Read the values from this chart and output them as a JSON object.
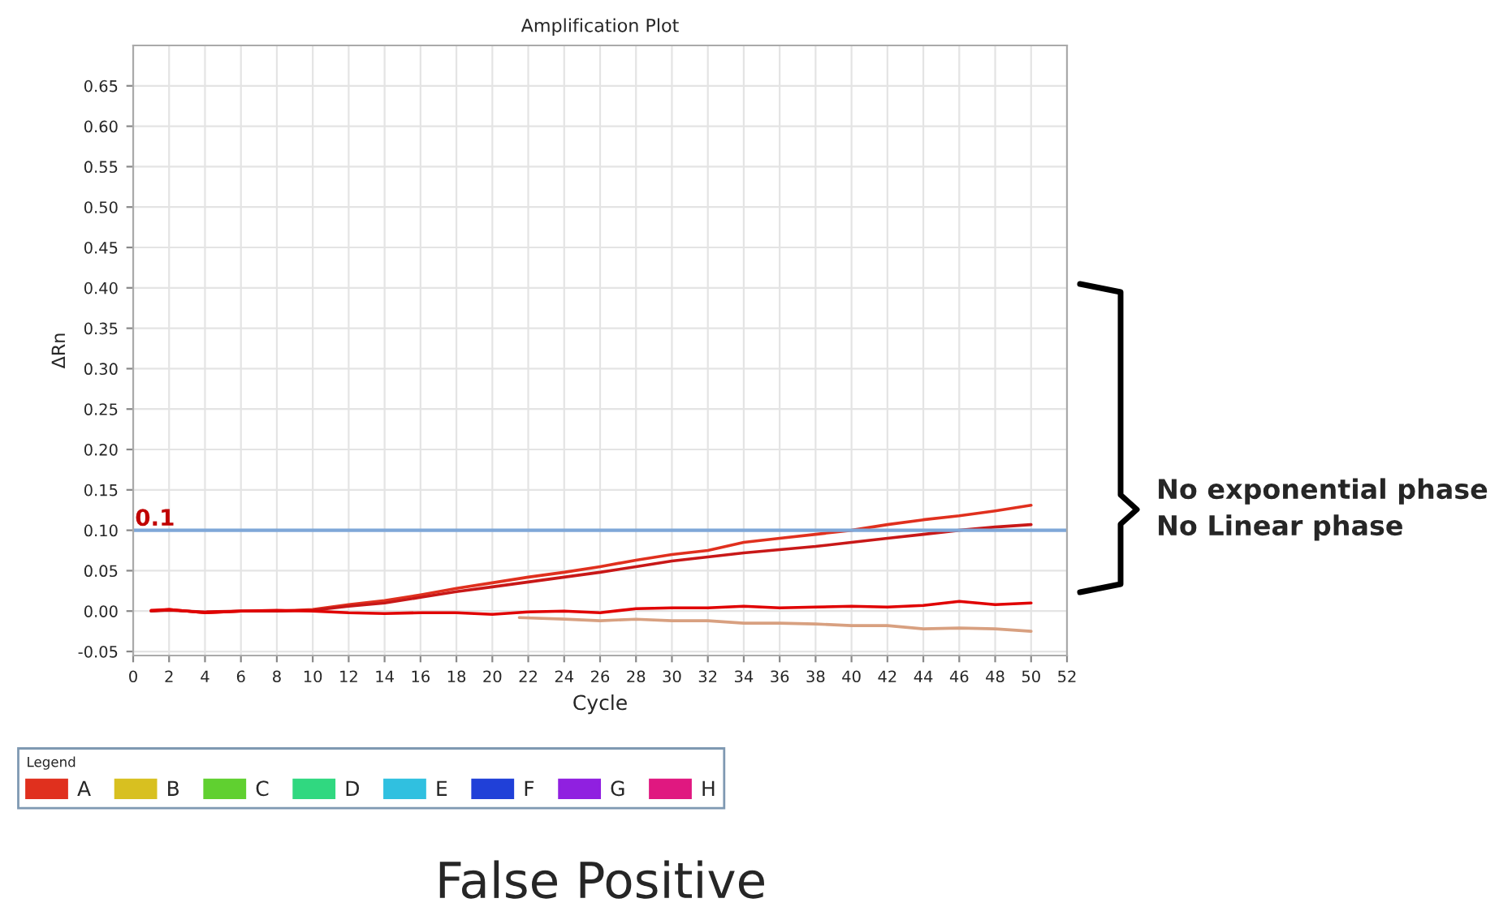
{
  "chart_data": {
    "type": "line",
    "title": "Amplification Plot",
    "xlabel": "Cycle",
    "ylabel": "ΔRn",
    "legend_title": "Legend",
    "x": [
      1,
      2,
      4,
      6,
      8,
      10,
      12,
      14,
      16,
      18,
      20,
      22,
      24,
      26,
      28,
      30,
      32,
      34,
      36,
      38,
      40,
      42,
      44,
      46,
      48,
      50
    ],
    "series": [
      {
        "name": "A",
        "color": "#e0301e",
        "values": [
          0.0,
          0.002,
          -0.002,
          0.0,
          0.0,
          0.002,
          0.008,
          0.013,
          0.02,
          0.028,
          0.035,
          0.042,
          0.048,
          0.055,
          0.063,
          0.07,
          0.075,
          0.085,
          0.09,
          0.095,
          0.1,
          0.107,
          0.113,
          0.118,
          0.124,
          0.131
        ]
      },
      {
        "color": "#c81818",
        "values": [
          0.0,
          0.001,
          -0.001,
          0.0,
          0.0,
          0.001,
          0.006,
          0.01,
          0.017,
          0.024,
          0.03,
          0.036,
          0.042,
          0.048,
          0.055,
          0.062,
          0.067,
          0.072,
          0.076,
          0.08,
          0.085,
          0.09,
          0.095,
          0.1,
          0.104,
          0.107
        ]
      },
      {
        "color": "#e00000",
        "values": [
          0.001,
          0.002,
          -0.002,
          0.0,
          0.001,
          0.0,
          -0.002,
          -0.003,
          -0.002,
          -0.002,
          -0.004,
          -0.001,
          0.0,
          -0.002,
          0.003,
          0.004,
          0.004,
          0.006,
          0.004,
          0.005,
          0.006,
          0.005,
          0.007,
          0.012,
          0.008,
          0.01
        ]
      },
      {
        "color": "#d8a080",
        "x": [
          21.5,
          24,
          26,
          28,
          30,
          32,
          34,
          36,
          38,
          40,
          42,
          44,
          46,
          48,
          50
        ],
        "values": [
          -0.008,
          -0.01,
          -0.012,
          -0.01,
          -0.012,
          -0.012,
          -0.015,
          -0.015,
          -0.016,
          -0.018,
          -0.018,
          -0.022,
          -0.021,
          -0.022,
          -0.025
        ]
      },
      {
        "name": "B",
        "color": "#d8c020",
        "values": [
          null,
          null,
          null,
          null,
          null,
          null,
          null,
          null,
          null,
          null,
          null,
          null,
          null,
          null,
          null,
          null,
          null,
          null,
          null,
          null,
          null,
          null,
          null,
          null,
          null,
          null
        ]
      },
      {
        "name": "C",
        "color": "#60d030",
        "values": [
          null,
          null,
          null,
          null,
          null,
          null,
          null,
          null,
          null,
          null,
          null,
          null,
          null,
          null,
          null,
          null,
          null,
          null,
          null,
          null,
          null,
          null,
          null,
          null,
          null,
          null
        ]
      },
      {
        "name": "D",
        "color": "#30d880",
        "values": [
          null,
          null,
          null,
          null,
          null,
          null,
          null,
          null,
          null,
          null,
          null,
          null,
          null,
          null,
          null,
          null,
          null,
          null,
          null,
          null,
          null,
          null,
          null,
          null,
          null,
          null
        ]
      },
      {
        "name": "E",
        "color": "#30c0e0",
        "values": [
          null,
          null,
          null,
          null,
          null,
          null,
          null,
          null,
          null,
          null,
          null,
          null,
          null,
          null,
          null,
          null,
          null,
          null,
          null,
          null,
          null,
          null,
          null,
          null,
          null,
          null
        ]
      },
      {
        "name": "F",
        "color": "#2040d8",
        "values": [
          null,
          null,
          null,
          null,
          null,
          null,
          null,
          null,
          null,
          null,
          null,
          null,
          null,
          null,
          null,
          null,
          null,
          null,
          null,
          null,
          null,
          null,
          null,
          null,
          null,
          null
        ]
      },
      {
        "name": "G",
        "color": "#9020e0",
        "values": [
          null,
          null,
          null,
          null,
          null,
          null,
          null,
          null,
          null,
          null,
          null,
          null,
          null,
          null,
          null,
          null,
          null,
          null,
          null,
          null,
          null,
          null,
          null,
          null,
          null,
          null
        ]
      },
      {
        "name": "H",
        "color": "#e01880",
        "values": [
          null,
          null,
          null,
          null,
          null,
          null,
          null,
          null,
          null,
          null,
          null,
          null,
          null,
          null,
          null,
          null,
          null,
          null,
          null,
          null,
          null,
          null,
          null,
          null,
          null,
          null
        ]
      }
    ],
    "xlim": [
      0,
      52
    ],
    "xticks": [
      0,
      2,
      4,
      6,
      8,
      10,
      12,
      14,
      16,
      18,
      20,
      22,
      24,
      26,
      28,
      30,
      32,
      34,
      36,
      38,
      40,
      42,
      44,
      46,
      48,
      50,
      52
    ],
    "ylim": [
      -0.055,
      0.7
    ],
    "yticks": [
      {
        "value": -0.05,
        "label": "-0.05"
      },
      {
        "value": 0.0,
        "label": "0.00"
      },
      {
        "value": 0.05,
        "label": "0.05"
      },
      {
        "value": 0.1,
        "label": "0.10"
      },
      {
        "value": 0.15,
        "label": "0.15"
      },
      {
        "value": 0.2,
        "label": "0.20"
      },
      {
        "value": 0.25,
        "label": "0.25"
      },
      {
        "value": 0.3,
        "label": "0.30"
      },
      {
        "value": 0.35,
        "label": "0.35"
      },
      {
        "value": 0.4,
        "label": "0.40"
      },
      {
        "value": 0.45,
        "label": "0.45"
      },
      {
        "value": 0.5,
        "label": "0.50"
      },
      {
        "value": 0.55,
        "label": "0.55"
      },
      {
        "value": 0.6,
        "label": "0.60"
      },
      {
        "value": 0.65,
        "label": "0.65"
      }
    ],
    "ref_lines": [
      {
        "axis": "y",
        "value": 0.1,
        "label": "0.1",
        "color": "#7fa7d8"
      }
    ],
    "annotations": [
      "No exponential phase\nNo Linear phase",
      "False Positive"
    ],
    "grid": true,
    "legend": "bottom",
    "marker": "none",
    "line_style": "solid"
  }
}
